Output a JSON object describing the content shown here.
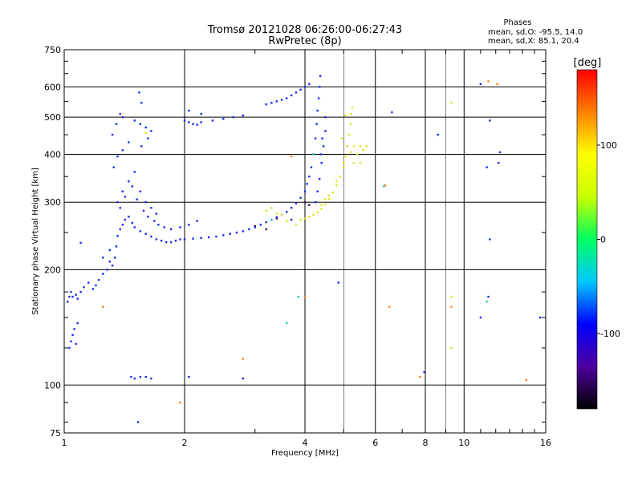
{
  "chart_data": {
    "type": "scatter",
    "title": "Tromsø 20121028 06:26:00-06:27:43",
    "subtitle": "RwPretec (8p)",
    "xlabel": "Frequency [MHz]",
    "ylabel": "Stationary phase Virtual Height [km]",
    "xscale": "log",
    "yscale": "log",
    "xlim": [
      1,
      16
    ],
    "ylim": [
      75,
      750
    ],
    "xticks": [
      1,
      2,
      4,
      6,
      8,
      10,
      16
    ],
    "yticks": [
      75,
      100,
      200,
      300,
      400,
      500,
      600,
      750
    ],
    "grid": true,
    "legend": {
      "title": "Phases",
      "line1": "mean, sd,O: -95.5, 14.0",
      "line2": "mean, sd,X:  85.1, 20.4"
    },
    "colorbar": {
      "label": "[deg]",
      "range": [
        -180,
        180
      ],
      "ticks": [
        100,
        0,
        -100
      ],
      "colors": [
        "#000000",
        "#5000a0",
        "#0000ff",
        "#00c8ff",
        "#00ff60",
        "#c8ff00",
        "#ffff00",
        "#ff8000",
        "#ff0000"
      ]
    },
    "series": [
      {
        "color": "#1a2cf0",
        "points": [
          [
            1.02,
            165
          ],
          [
            1.03,
            170
          ],
          [
            1.04,
            175
          ],
          [
            1.05,
            170
          ],
          [
            1.07,
            172
          ],
          [
            1.08,
            168
          ],
          [
            1.1,
            175
          ],
          [
            1.12,
            180
          ],
          [
            1.15,
            185
          ],
          [
            1.18,
            178
          ],
          [
            1.2,
            182
          ],
          [
            1.22,
            188
          ],
          [
            1.25,
            195
          ],
          [
            1.28,
            200
          ],
          [
            1.3,
            210
          ],
          [
            1.32,
            205
          ],
          [
            1.34,
            215
          ],
          [
            1.35,
            230
          ],
          [
            1.36,
            245
          ],
          [
            1.38,
            255
          ],
          [
            1.4,
            262
          ],
          [
            1.42,
            270
          ],
          [
            1.45,
            275
          ],
          [
            1.48,
            265
          ],
          [
            1.5,
            258
          ],
          [
            1.55,
            252
          ],
          [
            1.6,
            248
          ],
          [
            1.65,
            244
          ],
          [
            1.7,
            240
          ],
          [
            1.75,
            238
          ],
          [
            1.8,
            236
          ],
          [
            1.85,
            236
          ],
          [
            1.9,
            238
          ],
          [
            1.95,
            240
          ],
          [
            2.0,
            240
          ],
          [
            2.1,
            241
          ],
          [
            2.2,
            242
          ],
          [
            2.3,
            243
          ],
          [
            2.4,
            244
          ],
          [
            2.5,
            246
          ],
          [
            2.6,
            248
          ],
          [
            2.7,
            250
          ],
          [
            2.8,
            252
          ],
          [
            2.9,
            255
          ],
          [
            3.0,
            258
          ],
          [
            3.1,
            262
          ],
          [
            3.2,
            266
          ],
          [
            3.3,
            270
          ],
          [
            3.4,
            274
          ],
          [
            3.5,
            278
          ],
          [
            3.6,
            283
          ],
          [
            3.7,
            290
          ],
          [
            3.8,
            298
          ],
          [
            3.9,
            308
          ],
          [
            4.0,
            320
          ],
          [
            4.05,
            335
          ],
          [
            4.1,
            350
          ],
          [
            4.15,
            370
          ],
          [
            4.2,
            400
          ],
          [
            4.25,
            440
          ],
          [
            4.28,
            480
          ],
          [
            4.3,
            520
          ],
          [
            4.33,
            560
          ],
          [
            4.35,
            600
          ],
          [
            4.37,
            640
          ],
          [
            1.03,
            125
          ],
          [
            1.04,
            130
          ],
          [
            1.05,
            135
          ],
          [
            1.06,
            140
          ],
          [
            1.07,
            128
          ],
          [
            1.08,
            145
          ],
          [
            1.36,
            300
          ],
          [
            1.4,
            320
          ],
          [
            1.45,
            340
          ],
          [
            1.5,
            360
          ],
          [
            1.55,
            320
          ],
          [
            1.6,
            300
          ],
          [
            1.65,
            290
          ],
          [
            1.7,
            280
          ],
          [
            1.38,
            290
          ],
          [
            1.42,
            310
          ],
          [
            1.48,
            330
          ],
          [
            1.52,
            305
          ],
          [
            1.58,
            285
          ],
          [
            1.62,
            275
          ],
          [
            1.68,
            268
          ],
          [
            1.72,
            262
          ],
          [
            1.78,
            258
          ],
          [
            1.85,
            255
          ],
          [
            1.95,
            258
          ],
          [
            2.05,
            262
          ],
          [
            2.15,
            268
          ],
          [
            1.32,
            450
          ],
          [
            1.35,
            480
          ],
          [
            1.38,
            510
          ],
          [
            1.4,
            500
          ],
          [
            1.5,
            490
          ],
          [
            1.55,
            480
          ],
          [
            1.6,
            470
          ],
          [
            1.65,
            460
          ],
          [
            1.62,
            440
          ],
          [
            1.56,
            420
          ],
          [
            1.45,
            430
          ],
          [
            1.4,
            410
          ],
          [
            1.36,
            395
          ],
          [
            1.33,
            370
          ],
          [
            1.54,
            580
          ],
          [
            1.56,
            545
          ],
          [
            2.0,
            490
          ],
          [
            2.05,
            485
          ],
          [
            2.1,
            480
          ],
          [
            2.15,
            478
          ],
          [
            2.2,
            485
          ],
          [
            2.05,
            520
          ],
          [
            2.2,
            510
          ],
          [
            2.35,
            490
          ],
          [
            2.5,
            495
          ],
          [
            2.65,
            500
          ],
          [
            2.8,
            505
          ],
          [
            3.2,
            540
          ],
          [
            3.3,
            545
          ],
          [
            3.4,
            550
          ],
          [
            3.5,
            555
          ],
          [
            3.6,
            560
          ],
          [
            3.7,
            570
          ],
          [
            3.8,
            580
          ],
          [
            3.9,
            590
          ],
          [
            4.0,
            600
          ],
          [
            4.1,
            610
          ],
          [
            4.5,
            500
          ],
          [
            4.5,
            460
          ],
          [
            4.45,
            420
          ],
          [
            4.4,
            380
          ],
          [
            4.35,
            345
          ],
          [
            4.3,
            320
          ],
          [
            4.25,
            300
          ],
          [
            4.38,
            400
          ],
          [
            4.42,
            440
          ],
          [
            1.1,
            235
          ],
          [
            1.25,
            215
          ],
          [
            1.3,
            225
          ],
          [
            1.47,
            105
          ],
          [
            1.5,
            104
          ],
          [
            1.55,
            105
          ],
          [
            1.6,
            105
          ],
          [
            1.65,
            104
          ],
          [
            2.05,
            105
          ],
          [
            2.8,
            104
          ],
          [
            1.53,
            80
          ],
          [
            7.95,
            108
          ],
          [
            4.85,
            185
          ],
          [
            11.0,
            610
          ],
          [
            11.6,
            490
          ],
          [
            12.2,
            380
          ],
          [
            11.4,
            370
          ],
          [
            11.6,
            240
          ],
          [
            11.0,
            150
          ],
          [
            11.5,
            170
          ],
          [
            12.3,
            405
          ],
          [
            15.5,
            150
          ],
          [
            6.6,
            515
          ],
          [
            8.6,
            450
          ]
        ]
      },
      {
        "color": "#e0e020",
        "points": [
          [
            3.9,
            270
          ],
          [
            4.0,
            272
          ],
          [
            4.1,
            275
          ],
          [
            4.2,
            278
          ],
          [
            4.3,
            282
          ],
          [
            4.4,
            288
          ],
          [
            4.5,
            296
          ],
          [
            4.6,
            306
          ],
          [
            4.7,
            318
          ],
          [
            4.8,
            332
          ],
          [
            4.9,
            350
          ],
          [
            5.0,
            370
          ],
          [
            5.05,
            395
          ],
          [
            5.1,
            420
          ],
          [
            5.15,
            450
          ],
          [
            5.2,
            480
          ],
          [
            5.22,
            510
          ],
          [
            5.25,
            530
          ],
          [
            4.4,
            295
          ],
          [
            4.5,
            305
          ],
          [
            4.6,
            312
          ],
          [
            4.8,
            340
          ],
          [
            5.0,
            380
          ],
          [
            5.2,
            405
          ],
          [
            5.3,
            420
          ],
          [
            5.4,
            400
          ],
          [
            5.5,
            380
          ],
          [
            5.6,
            410
          ],
          [
            5.7,
            420
          ],
          [
            5.5,
            420
          ],
          [
            5.3,
            380
          ],
          [
            3.2,
            285
          ],
          [
            3.3,
            290
          ],
          [
            3.4,
            280
          ],
          [
            3.5,
            278
          ],
          [
            3.6,
            268
          ],
          [
            3.8,
            262
          ],
          [
            5.05,
            505
          ],
          [
            4.95,
            440
          ],
          [
            9.3,
            545
          ],
          [
            9.3,
            170
          ],
          [
            9.3,
            125
          ],
          [
            1.6,
            455
          ]
        ]
      },
      {
        "color": "#ff8020",
        "points": [
          [
            1.25,
            160
          ],
          [
            1.95,
            90
          ],
          [
            2.8,
            117
          ],
          [
            3.2,
            255
          ],
          [
            6.5,
            160
          ],
          [
            7.75,
            105
          ],
          [
            9.3,
            160
          ],
          [
            11.5,
            620
          ],
          [
            12.1,
            610
          ],
          [
            14.3,
            103
          ],
          [
            6.35,
            332
          ],
          [
            3.7,
            395
          ],
          [
            4.0,
            170
          ]
        ]
      },
      {
        "color": "#20c8c0",
        "points": [
          [
            3.3,
            270
          ],
          [
            3.6,
            145
          ],
          [
            3.85,
            170
          ],
          [
            4.2,
            400
          ],
          [
            6.3,
            330
          ],
          [
            11.4,
            165
          ]
        ]
      },
      {
        "color": "#401060",
        "points": [
          [
            3.0,
            260
          ],
          [
            3.2,
            255
          ],
          [
            3.4,
            272
          ],
          [
            3.7,
            270
          ],
          [
            4.0,
            300
          ],
          [
            4.1,
            295
          ]
        ]
      }
    ]
  }
}
